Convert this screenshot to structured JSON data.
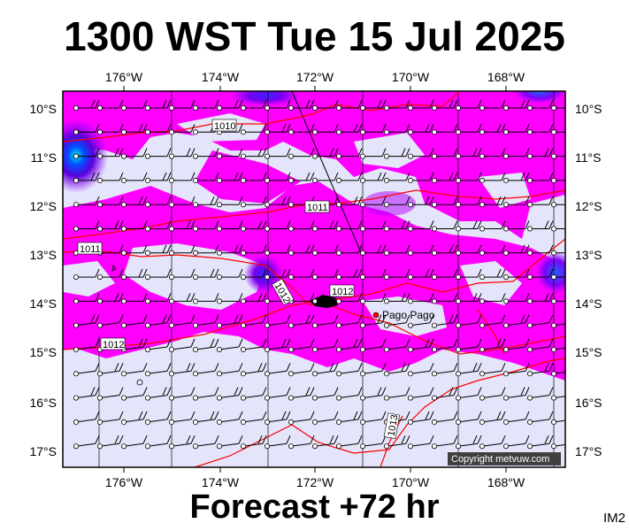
{
  "title": "1300 WST Tue 15 Jul 2025",
  "subtitle": "Forecast +72 hr",
  "corner_label": "IM2",
  "copyright": "Copyright metvuw.com",
  "place_label": "Pago Pago",
  "lon_labels": [
    "176°W",
    "174°W",
    "172°W",
    "170°W",
    "168°W"
  ],
  "lat_labels": [
    "10°S",
    "11°S",
    "12°S",
    "13°S",
    "14°S",
    "15°S",
    "16°S",
    "17°S"
  ],
  "isobar_labels": [
    "1010",
    "1011",
    "1011",
    "1012",
    "1012",
    "1012",
    "1013",
    "1013"
  ],
  "colors": {
    "background": "#e4e4fa",
    "magenta": "#ff00ff",
    "purple": "#9a00ff",
    "deep_purple": "#5a00d8",
    "cyan": "#00e4e4",
    "isobar": "#ff0000"
  }
}
